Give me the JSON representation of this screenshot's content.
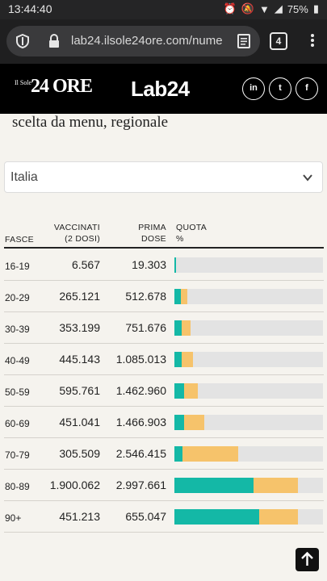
{
  "status_bar": {
    "time": "13:44:40",
    "battery": "75%"
  },
  "browser": {
    "url": "lab24.ilsole24ore.com/nume",
    "tab_count": "4"
  },
  "site": {
    "logo_small": "Il Sole",
    "logo_big": "24 ORE",
    "lab_logo": "Lab24",
    "social": [
      "in",
      "t",
      "f"
    ]
  },
  "content": {
    "subtitle": "scelta da menu, regionale",
    "select_value": "Italia"
  },
  "table": {
    "headers": {
      "fasce": "FASCE",
      "vacc_1": "VACCINATI",
      "vacc_2": "(2 DOSI)",
      "prima_1": "PRIMA",
      "prima_2": "DOSE",
      "quota_1": "QUOTA",
      "quota_2": "%"
    },
    "rows": [
      {
        "fascia": "16-19",
        "vaccinati": "6.567",
        "prima_dose": "19.303",
        "quota_vacc": 0.5,
        "quota_prima": 1.0
      },
      {
        "fascia": "20-29",
        "vaccinati": "265.121",
        "prima_dose": "512.678",
        "quota_vacc": 4.5,
        "quota_prima": 8.5
      },
      {
        "fascia": "30-39",
        "vaccinati": "353.199",
        "prima_dose": "751.676",
        "quota_vacc": 5.0,
        "quota_prima": 11.0
      },
      {
        "fascia": "40-49",
        "vaccinati": "445.143",
        "prima_dose": "1.085.013",
        "quota_vacc": 5.0,
        "quota_prima": 12.5
      },
      {
        "fascia": "50-59",
        "vaccinati": "595.761",
        "prima_dose": "1.462.960",
        "quota_vacc": 6.5,
        "quota_prima": 15.5
      },
      {
        "fascia": "60-69",
        "vaccinati": "451.041",
        "prima_dose": "1.466.903",
        "quota_vacc": 6.5,
        "quota_prima": 20.0
      },
      {
        "fascia": "70-79",
        "vaccinati": "305.509",
        "prima_dose": "2.546.415",
        "quota_vacc": 5.5,
        "quota_prima": 43.0
      },
      {
        "fascia": "80-89",
        "vaccinati": "1.900.062",
        "prima_dose": "2.997.661",
        "quota_vacc": 53.0,
        "quota_prima": 83.0
      },
      {
        "fascia": "90+",
        "vaccinati": "451.213",
        "prima_dose": "655.047",
        "quota_vacc": 57.0,
        "quota_prima": 83.0
      }
    ]
  },
  "colors": {
    "vaccinati": "#14b8a6",
    "prima_dose": "#f6c36b",
    "bar_background": "#e3e3e3"
  }
}
